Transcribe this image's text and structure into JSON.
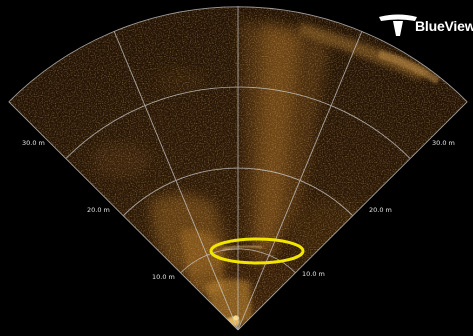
{
  "brand": {
    "name": "BlueView",
    "logo_icon": "teledyne-t-logo-icon"
  },
  "sonar": {
    "range_labels": [
      {
        "side": "left",
        "text": "10.0 m"
      },
      {
        "side": "left",
        "text": "20.0 m"
      },
      {
        "side": "left",
        "text": "30.0 m"
      },
      {
        "side": "right",
        "text": "10.0 m"
      },
      {
        "side": "right",
        "text": "20.0 m"
      },
      {
        "side": "right",
        "text": "30.0 m"
      }
    ],
    "highlight": {
      "shape": "ellipse",
      "color": "#f2e600"
    },
    "colors": {
      "background": "#000000",
      "fan_base": "#2a1706",
      "echo": "#c98a2a",
      "grid": "#cfcfcf"
    }
  }
}
